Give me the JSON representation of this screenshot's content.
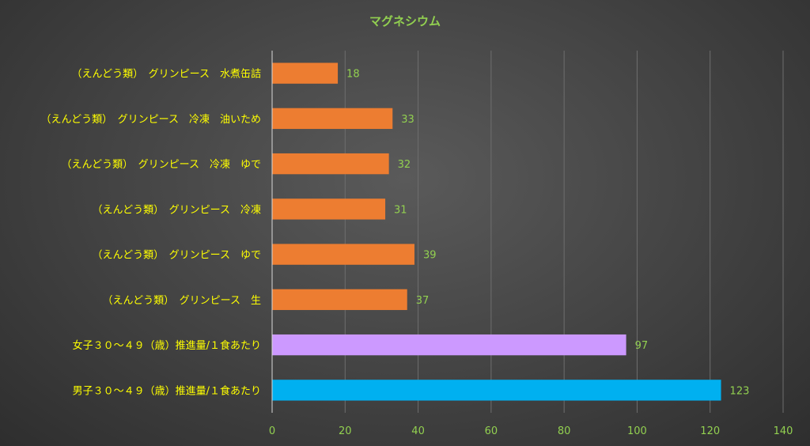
{
  "chart_data": {
    "type": "bar",
    "orientation": "horizontal",
    "title": "マグネシウム",
    "categories": [
      "（えんどう類）　グリンピース　水煮缶詰",
      "（えんどう類）　グリンピース　冷凍　油いため",
      "（えんどう類）　グリンピース　冷凍　ゆで",
      "（えんどう類）　グリンピース　冷凍",
      "（えんどう類）　グリンピース　ゆで",
      "（えんどう類）　グリンピース　生",
      "女子３０～４９（歳）推進量/１食あたり",
      "男子３０～４９（歳）推進量/１食あたり"
    ],
    "values": [
      18,
      33,
      32,
      31,
      39,
      37,
      97,
      123
    ],
    "bar_colors": [
      "#ed7d31",
      "#ed7d31",
      "#ed7d31",
      "#ed7d31",
      "#ed7d31",
      "#ed7d31",
      "#cc99ff",
      "#00b0f0"
    ],
    "xlim": [
      0,
      140
    ],
    "xticks": [
      0,
      20,
      40,
      60,
      80,
      100,
      120,
      140
    ],
    "grid": true,
    "legend": "none",
    "colors": {
      "title": "#92d050",
      "category_labels": "#ffff00",
      "value_labels": "#92d050",
      "tick_labels": "#92d050"
    }
  }
}
